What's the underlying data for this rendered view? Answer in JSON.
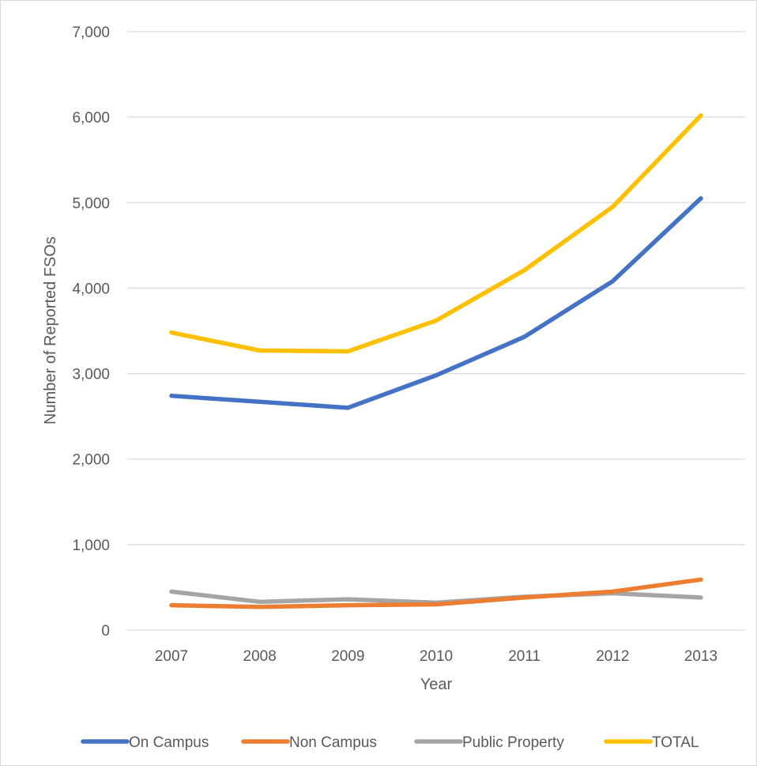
{
  "chart_data": {
    "type": "line",
    "title": "",
    "xlabel": "Year",
    "ylabel": "Number of Reported FSOs",
    "categories": [
      "2007",
      "2008",
      "2009",
      "2010",
      "2011",
      "2012",
      "2013"
    ],
    "ylim": [
      0,
      7000
    ],
    "yticks": [
      0,
      1000,
      2000,
      3000,
      4000,
      5000,
      6000,
      7000
    ],
    "ytick_labels": [
      "0",
      "1,000",
      "2,000",
      "3,000",
      "4,000",
      "5,000",
      "6,000",
      "7,000"
    ],
    "grid": "horizontal",
    "legend_position": "bottom",
    "series": [
      {
        "name": "On Campus",
        "color": "#4472c4",
        "values": [
          2740,
          2670,
          2600,
          2980,
          3430,
          4080,
          5050
        ]
      },
      {
        "name": "Non Campus",
        "color": "#ed7d31",
        "values": [
          290,
          270,
          290,
          300,
          380,
          450,
          590
        ]
      },
      {
        "name": "Public Property",
        "color": "#a5a5a5",
        "values": [
          450,
          330,
          360,
          320,
          390,
          430,
          380
        ]
      },
      {
        "name": "TOTAL",
        "color": "#ffc000",
        "values": [
          3480,
          3270,
          3260,
          3620,
          4210,
          4950,
          6020
        ]
      }
    ]
  }
}
